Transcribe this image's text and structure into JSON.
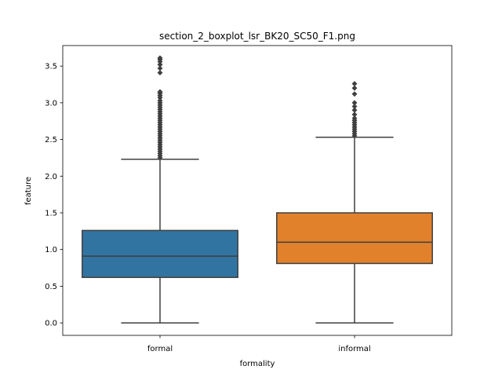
{
  "chart_data": {
    "type": "boxplot",
    "title": "section_2_boxplot_lsr_BK20_SC50_F1.png",
    "xlabel": "formality",
    "ylabel": "feature",
    "ylim": [
      -0.17,
      3.78
    ],
    "yticks": [
      0.0,
      0.5,
      1.0,
      1.5,
      2.0,
      2.5,
      3.0,
      3.5
    ],
    "ytick_labels": [
      "0.0",
      "0.5",
      "1.0",
      "1.5",
      "2.0",
      "2.5",
      "3.0",
      "3.5"
    ],
    "grid": false,
    "categories": [
      "formal",
      "informal"
    ],
    "series": [
      {
        "category": "formal",
        "color": "#3274a1",
        "whisker_low": 0.0,
        "q1": 0.62,
        "median": 0.91,
        "q3": 1.26,
        "whisker_high": 2.23,
        "outliers": [
          2.25,
          2.28,
          2.31,
          2.34,
          2.37,
          2.4,
          2.43,
          2.46,
          2.49,
          2.52,
          2.55,
          2.58,
          2.61,
          2.64,
          2.67,
          2.7,
          2.73,
          2.76,
          2.79,
          2.82,
          2.85,
          2.88,
          2.91,
          2.94,
          2.97,
          3.0,
          3.03,
          3.07,
          3.1,
          3.13,
          3.15,
          3.41,
          3.47,
          3.52,
          3.56,
          3.59,
          3.61
        ]
      },
      {
        "category": "informal",
        "color": "#e1812c",
        "whisker_low": 0.0,
        "q1": 0.81,
        "median": 1.1,
        "q3": 1.5,
        "whisker_high": 2.53,
        "outliers": [
          2.55,
          2.58,
          2.61,
          2.64,
          2.67,
          2.7,
          2.73,
          2.76,
          2.79,
          2.84,
          2.9,
          2.95,
          3.0,
          3.12,
          3.2,
          3.26
        ]
      }
    ]
  }
}
